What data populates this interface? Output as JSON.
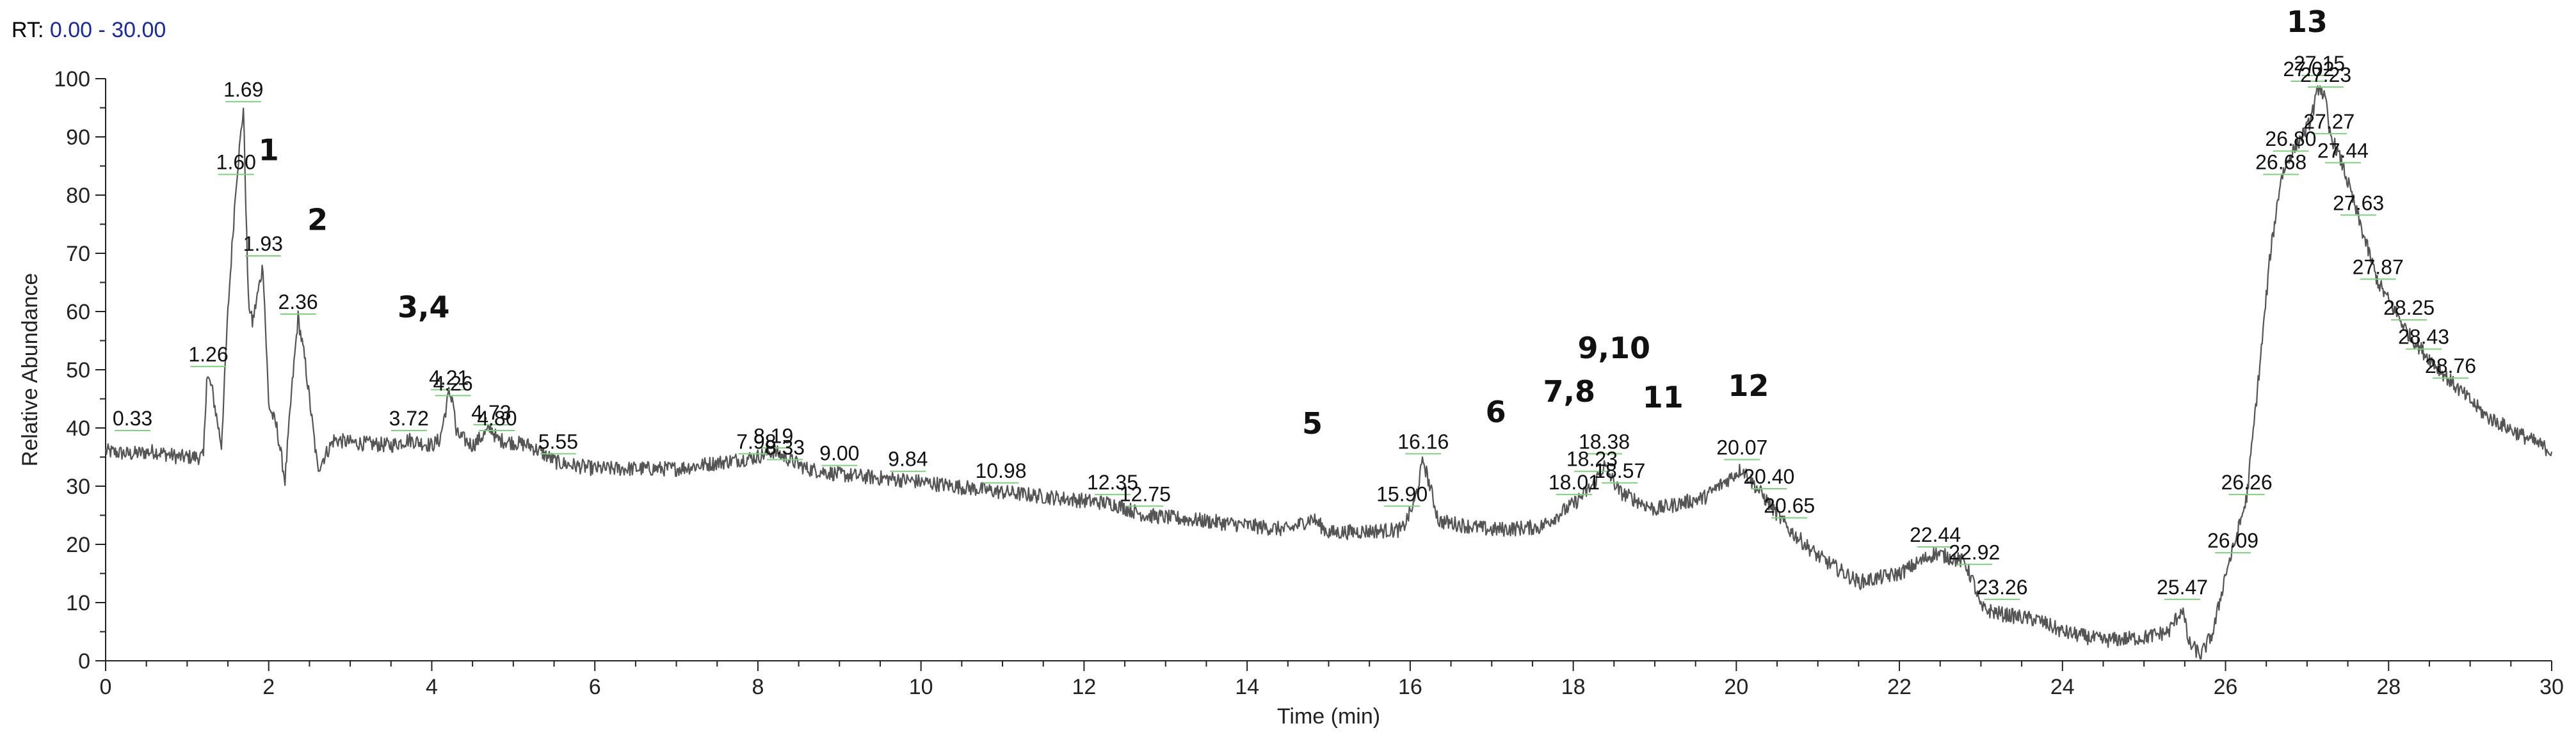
{
  "header": {
    "rt_prefix": "RT:",
    "rt_range": "0.00 - 30.00"
  },
  "colors": {
    "trace": "#555555",
    "axis": "#222222",
    "rt_value": "#1a2a9c",
    "peak_marker": "#7fd17f"
  },
  "chart_data": {
    "type": "line",
    "title": "",
    "xlabel": "Time (min)",
    "ylabel": "Relative Abundance",
    "xlim": [
      0,
      30
    ],
    "ylim": [
      0,
      100
    ],
    "x_ticks": [
      0,
      2,
      4,
      6,
      8,
      10,
      12,
      14,
      16,
      18,
      20,
      22,
      24,
      26,
      28,
      30
    ],
    "y_ticks": [
      0,
      10,
      20,
      30,
      40,
      50,
      60,
      70,
      80,
      90,
      100
    ],
    "grid": false,
    "trace_points": [
      [
        0,
        36
      ],
      [
        0.3,
        35.5
      ],
      [
        0.6,
        36
      ],
      [
        0.9,
        35
      ],
      [
        1.2,
        35
      ],
      [
        1.24,
        49
      ],
      [
        1.3,
        47
      ],
      [
        1.42,
        37
      ],
      [
        1.5,
        60
      ],
      [
        1.6,
        82
      ],
      [
        1.69,
        95
      ],
      [
        1.75,
        62
      ],
      [
        1.8,
        58
      ],
      [
        1.93,
        68
      ],
      [
        2.0,
        44
      ],
      [
        2.1,
        40
      ],
      [
        2.2,
        31
      ],
      [
        2.28,
        46
      ],
      [
        2.36,
        59
      ],
      [
        2.45,
        51
      ],
      [
        2.6,
        33
      ],
      [
        2.8,
        38
      ],
      [
        3.0,
        37.5
      ],
      [
        3.5,
        37
      ],
      [
        3.72,
        38
      ],
      [
        4.0,
        37
      ],
      [
        4.1,
        38
      ],
      [
        4.21,
        46
      ],
      [
        4.26,
        45
      ],
      [
        4.3,
        39
      ],
      [
        4.5,
        37
      ],
      [
        4.73,
        40
      ],
      [
        4.8,
        38
      ],
      [
        5.2,
        37
      ],
      [
        5.55,
        34
      ],
      [
        6.0,
        33
      ],
      [
        7.0,
        33
      ],
      [
        7.98,
        35
      ],
      [
        8.19,
        36
      ],
      [
        8.6,
        33
      ],
      [
        9.0,
        32
      ],
      [
        9.84,
        31
      ],
      [
        10.98,
        29
      ],
      [
        12.35,
        27
      ],
      [
        12.75,
        25
      ],
      [
        13.5,
        24
      ],
      [
        14.5,
        22.5
      ],
      [
        14.8,
        24.5
      ],
      [
        15.0,
        22
      ],
      [
        15.9,
        22.5
      ],
      [
        16.05,
        27
      ],
      [
        16.16,
        34.5
      ],
      [
        16.35,
        24
      ],
      [
        17.0,
        22.5
      ],
      [
        17.6,
        23
      ],
      [
        18.01,
        27
      ],
      [
        18.23,
        30
      ],
      [
        18.38,
        33.5
      ],
      [
        18.57,
        29
      ],
      [
        19.0,
        26
      ],
      [
        19.6,
        28
      ],
      [
        20.07,
        33
      ],
      [
        20.4,
        27
      ],
      [
        20.65,
        22.5
      ],
      [
        21.0,
        18
      ],
      [
        21.5,
        13.5
      ],
      [
        22.0,
        15
      ],
      [
        22.44,
        18.5
      ],
      [
        22.8,
        17
      ],
      [
        22.92,
        13
      ],
      [
        23.0,
        9
      ],
      [
        23.26,
        8
      ],
      [
        23.7,
        7
      ],
      [
        24.0,
        5
      ],
      [
        24.5,
        3.5
      ],
      [
        25.0,
        4
      ],
      [
        25.3,
        5
      ],
      [
        25.47,
        9
      ],
      [
        25.55,
        3
      ],
      [
        25.7,
        1
      ],
      [
        25.85,
        5
      ],
      [
        26.0,
        15
      ],
      [
        26.09,
        19
      ],
      [
        26.26,
        28
      ],
      [
        26.45,
        55
      ],
      [
        26.55,
        70
      ],
      [
        26.68,
        83
      ],
      [
        26.8,
        87
      ],
      [
        27.02,
        92
      ],
      [
        27.1,
        96
      ],
      [
        27.15,
        99
      ],
      [
        27.23,
        96
      ],
      [
        27.27,
        91
      ],
      [
        27.44,
        85
      ],
      [
        27.63,
        76
      ],
      [
        27.87,
        65
      ],
      [
        28.25,
        56
      ],
      [
        28.43,
        53
      ],
      [
        28.76,
        48
      ],
      [
        29.2,
        42
      ],
      [
        29.6,
        39
      ],
      [
        30.0,
        36
      ]
    ],
    "peak_labels": [
      {
        "rt": 0.33,
        "text": "0.33",
        "level": 40
      },
      {
        "rt": 1.26,
        "text": "1.26",
        "level": 51
      },
      {
        "rt": 1.6,
        "text": "1.60",
        "level": 84
      },
      {
        "rt": 1.69,
        "text": "1.69",
        "level": 96.5
      },
      {
        "rt": 1.93,
        "text": "1.93",
        "level": 70
      },
      {
        "rt": 2.36,
        "text": "2.36",
        "level": 60
      },
      {
        "rt": 3.72,
        "text": "3.72",
        "level": 40
      },
      {
        "rt": 4.21,
        "text": "4.21",
        "level": 47
      },
      {
        "rt": 4.26,
        "text": "4.26",
        "level": 46
      },
      {
        "rt": 4.73,
        "text": "4.73",
        "level": 41
      },
      {
        "rt": 4.8,
        "text": "4.80",
        "level": 40
      },
      {
        "rt": 5.55,
        "text": "5.55",
        "level": 36
      },
      {
        "rt": 7.98,
        "text": "7.98",
        "level": 36
      },
      {
        "rt": 8.19,
        "text": "8.19",
        "level": 37
      },
      {
        "rt": 8.33,
        "text": "8.33",
        "level": 35
      },
      {
        "rt": 9.0,
        "text": "9.00",
        "level": 34
      },
      {
        "rt": 9.84,
        "text": "9.84",
        "level": 33
      },
      {
        "rt": 10.98,
        "text": "10.98",
        "level": 31
      },
      {
        "rt": 12.35,
        "text": "12.35",
        "level": 29
      },
      {
        "rt": 12.75,
        "text": "12.75",
        "level": 27
      },
      {
        "rt": 15.9,
        "text": "15.90",
        "level": 27
      },
      {
        "rt": 16.16,
        "text": "16.16",
        "level": 36
      },
      {
        "rt": 18.01,
        "text": "18.01",
        "level": 29
      },
      {
        "rt": 18.23,
        "text": "18.23",
        "level": 33
      },
      {
        "rt": 18.38,
        "text": "18.38",
        "level": 36
      },
      {
        "rt": 18.57,
        "text": "18.57",
        "level": 31
      },
      {
        "rt": 20.07,
        "text": "20.07",
        "level": 35
      },
      {
        "rt": 20.4,
        "text": "20.40",
        "level": 30
      },
      {
        "rt": 20.65,
        "text": "20.65",
        "level": 25
      },
      {
        "rt": 22.44,
        "text": "22.44",
        "level": 20
      },
      {
        "rt": 22.92,
        "text": "22.92",
        "level": 17
      },
      {
        "rt": 23.26,
        "text": "23.26",
        "level": 11
      },
      {
        "rt": 25.47,
        "text": "25.47",
        "level": 11
      },
      {
        "rt": 26.09,
        "text": "26.09",
        "level": 19
      },
      {
        "rt": 26.26,
        "text": "26.26",
        "level": 29
      },
      {
        "rt": 26.68,
        "text": "26.68",
        "level": 84
      },
      {
        "rt": 26.8,
        "text": "26.80",
        "level": 88
      },
      {
        "rt": 27.02,
        "text": "27.02",
        "level": 100
      },
      {
        "rt": 27.15,
        "text": "27.15",
        "level": 101
      },
      {
        "rt": 27.23,
        "text": "27.23",
        "level": 99
      },
      {
        "rt": 27.27,
        "text": "27.27",
        "level": 91
      },
      {
        "rt": 27.44,
        "text": "27.44",
        "level": 86
      },
      {
        "rt": 27.63,
        "text": "27.63",
        "level": 77
      },
      {
        "rt": 27.87,
        "text": "27.87",
        "level": 66
      },
      {
        "rt": 28.25,
        "text": "28.25",
        "level": 59
      },
      {
        "rt": 28.43,
        "text": "28.43",
        "level": 54
      },
      {
        "rt": 28.76,
        "text": "28.76",
        "level": 49
      }
    ],
    "compound_labels": [
      {
        "text": "1",
        "rt": 2.0,
        "level": 86
      },
      {
        "text": "2",
        "rt": 2.6,
        "level": 74
      },
      {
        "text": "3,4",
        "rt": 3.9,
        "level": 59
      },
      {
        "text": "5",
        "rt": 14.8,
        "level": 39
      },
      {
        "text": "6",
        "rt": 17.05,
        "level": 41
      },
      {
        "text": "7,8",
        "rt": 17.95,
        "level": 44.5
      },
      {
        "text": "9,10",
        "rt": 18.5,
        "level": 52
      },
      {
        "text": "11",
        "rt": 19.1,
        "level": 43.5
      },
      {
        "text": "12",
        "rt": 20.15,
        "level": 45.5
      },
      {
        "text": "13",
        "rt": 27.0,
        "level": 108
      }
    ]
  }
}
